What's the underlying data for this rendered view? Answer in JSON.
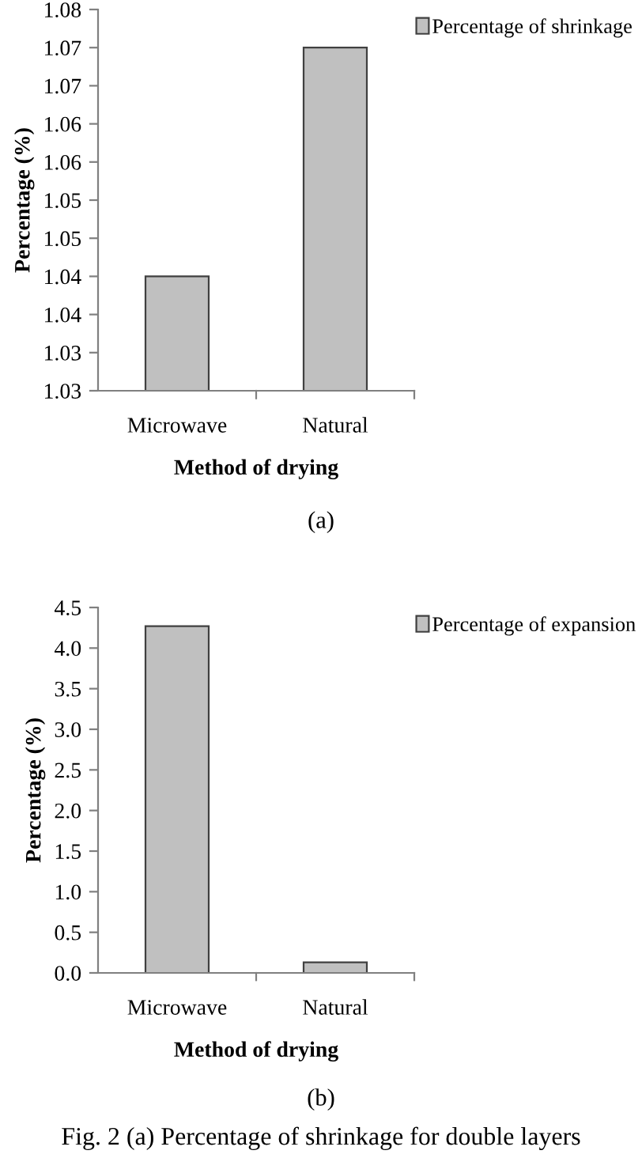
{
  "chart_data": [
    {
      "type": "bar",
      "xlabel": "Method of drying",
      "ylabel": "Percentage (%)",
      "categories": [
        "Microwave",
        "Natural"
      ],
      "series": [
        {
          "name": "Percentage of shrinkage",
          "color": "#c0c0c0",
          "values": [
            1.045,
            1.075
          ]
        }
      ],
      "ylim": [
        1.03,
        1.08
      ],
      "yticks": [
        {
          "value": 1.03,
          "label": "1.03"
        },
        {
          "value": 1.035,
          "label": "1.03"
        },
        {
          "value": 1.04,
          "label": "1.04"
        },
        {
          "value": 1.045,
          "label": "1.04"
        },
        {
          "value": 1.05,
          "label": "1.05"
        },
        {
          "value": 1.055,
          "label": "1.05"
        },
        {
          "value": 1.06,
          "label": "1.06"
        },
        {
          "value": 1.065,
          "label": "1.06"
        },
        {
          "value": 1.07,
          "label": "1.07"
        },
        {
          "value": 1.075,
          "label": "1.07"
        },
        {
          "value": 1.08,
          "label": "1.08"
        }
      ],
      "legend": "top right",
      "grid": false,
      "annotations": [
        "(a)"
      ]
    },
    {
      "type": "bar",
      "xlabel": "Method of drying",
      "ylabel": "Percentage (%)",
      "categories": [
        "Microwave",
        "Natural"
      ],
      "series": [
        {
          "name": "Percentage of expansion",
          "color": "#c0c0c0",
          "values": [
            4.27,
            0.13
          ]
        }
      ],
      "ylim": [
        0,
        4.5
      ],
      "yticks": [
        {
          "value": 0,
          "label": "0.0"
        },
        {
          "value": 0.5,
          "label": "0.5"
        },
        {
          "value": 1,
          "label": "1.0"
        },
        {
          "value": 1.5,
          "label": "1.5"
        },
        {
          "value": 2,
          "label": "2.0"
        },
        {
          "value": 2.5,
          "label": "2.5"
        },
        {
          "value": 3,
          "label": "3.0"
        },
        {
          "value": 3.5,
          "label": "3.5"
        },
        {
          "value": 4,
          "label": "4.0"
        },
        {
          "value": 4.5,
          "label": "4.5"
        }
      ],
      "legend": "top right",
      "grid": false,
      "annotations": [
        "(b)",
        "Fig. 2 (a) Percentage of shrinkage for double layers"
      ]
    }
  ]
}
